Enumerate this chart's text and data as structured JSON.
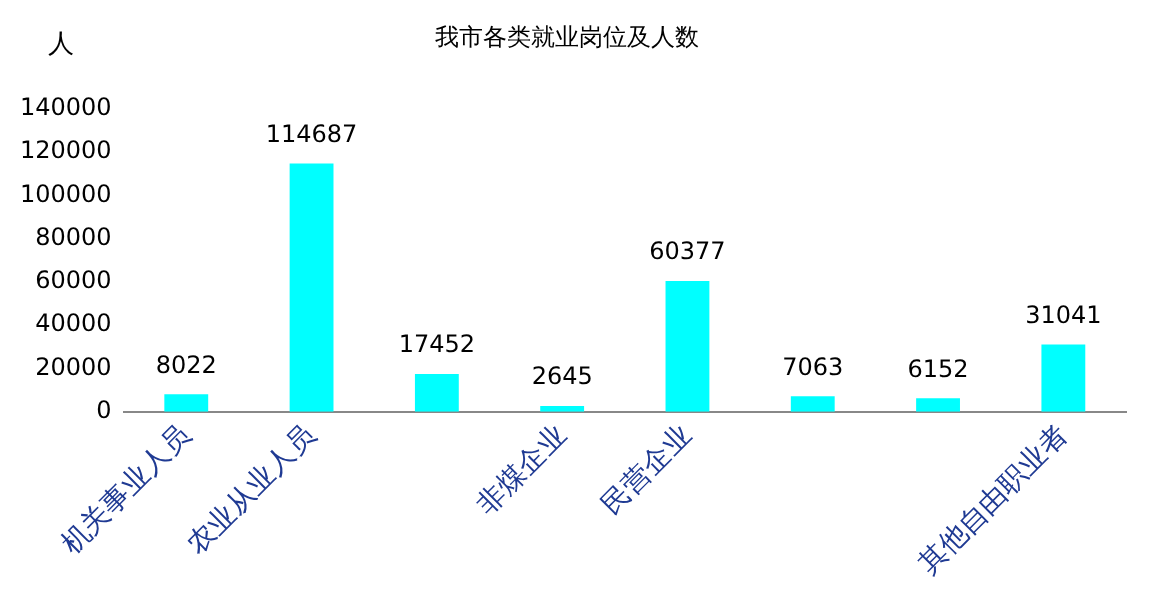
{
  "chart_data": {
    "type": "bar",
    "title": "我市各类就业岗位及人数",
    "ylabel": "人",
    "categories": [
      "机关事业人员",
      "农业从业人员",
      null,
      "非煤企业",
      "民营企业",
      null,
      null,
      "其他自由职业者"
    ],
    "values": [
      8022,
      114687,
      17452,
      2645,
      60377,
      7063,
      6152,
      31041
    ],
    "color": "#00ffff",
    "ylim": [
      0,
      140000
    ],
    "yticks": [
      0,
      20000,
      40000,
      60000,
      80000,
      100000,
      120000,
      140000
    ],
    "grid": false,
    "legend": false,
    "data_labels": true
  }
}
